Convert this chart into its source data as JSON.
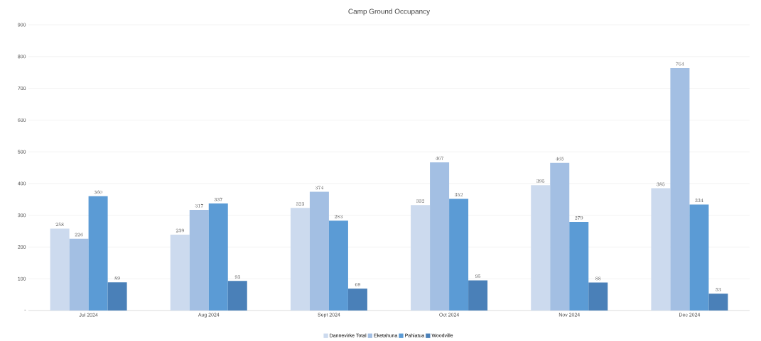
{
  "chart_data": {
    "type": "bar",
    "title": "Camp Ground Occupancy",
    "categories": [
      "Jul 2024",
      "Aug 2024",
      "Sept 2024",
      "Oct 2024",
      "Nov 2024",
      "Dec 2024"
    ],
    "series": [
      {
        "name": "Dannevirke Total",
        "color": "#ccdaee",
        "values": [
          258,
          239,
          323,
          332,
          395,
          385
        ]
      },
      {
        "name": "Eketahuna",
        "color": "#a3bfe3",
        "values": [
          226,
          317,
          374,
          467,
          465,
          764
        ]
      },
      {
        "name": "Pahiatua",
        "color": "#5b9bd5",
        "values": [
          360,
          337,
          283,
          352,
          279,
          334
        ]
      },
      {
        "name": "Woodville",
        "color": "#4a80b8",
        "values": [
          89,
          93,
          69,
          95,
          88,
          53
        ]
      }
    ],
    "ylim": [
      0,
      900
    ],
    "yticks": [
      {
        "value": 0,
        "label": "-"
      },
      100,
      200,
      300,
      400,
      500,
      600,
      700,
      800,
      900
    ],
    "grid": "y",
    "legend": "bottom",
    "data_labels": true
  }
}
